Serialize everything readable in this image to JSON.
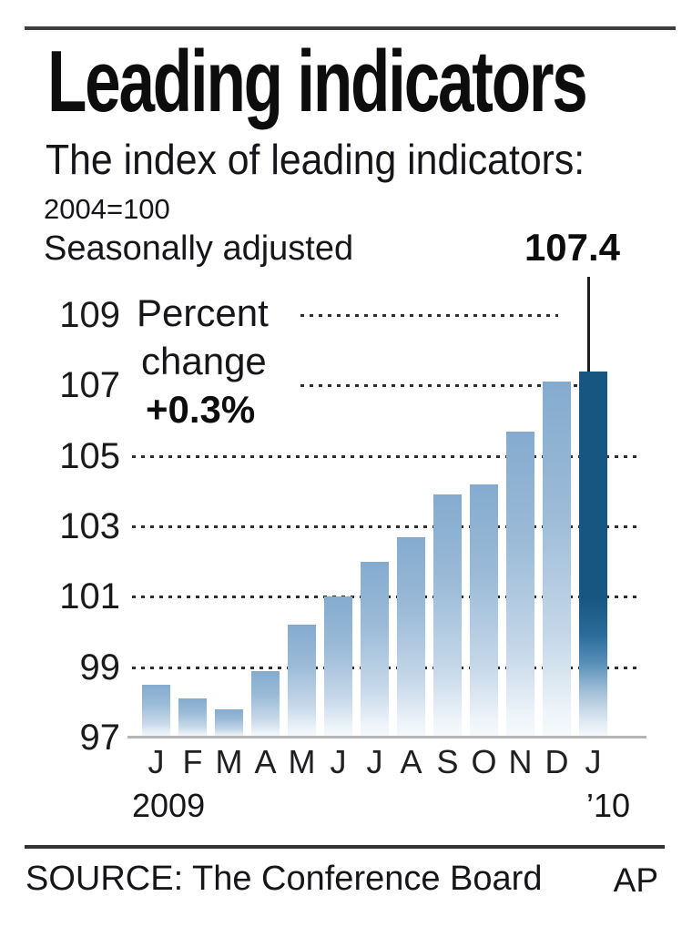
{
  "header": {
    "title": "Leading indicators",
    "subtitle": "The index of leading indicators:",
    "scale_note": "2004=100",
    "adjustment_note": "Seasonally adjusted"
  },
  "annotation": {
    "line1": "Percent",
    "line2": "change",
    "value": "+0.3%",
    "peak_label": "107.4"
  },
  "x_axis": {
    "year_left": "2009",
    "year_right": "’10"
  },
  "footer": {
    "source": "SOURCE: The Conference Board",
    "credit": "AP"
  },
  "chart_data": {
    "type": "bar",
    "title": "Leading indicators",
    "subtitle": "The index of leading indicators: 2004=100, seasonally adjusted",
    "categories": [
      "J",
      "F",
      "M",
      "A",
      "M",
      "J",
      "J",
      "A",
      "S",
      "O",
      "N",
      "D",
      "J"
    ],
    "values": [
      98.5,
      98.1,
      97.8,
      98.9,
      100.2,
      101.0,
      102.0,
      102.7,
      103.9,
      104.2,
      105.7,
      107.1,
      107.4
    ],
    "highlight_index": 12,
    "highlight_value_label": "107.4",
    "percent_change_label": "+0.3%",
    "xlabel": "",
    "ylabel": "Index (2004=100)",
    "ylim": [
      97,
      109.5
    ],
    "yticks": [
      97,
      99,
      101,
      103,
      105,
      107,
      109
    ],
    "grid": "dotted horizontal",
    "legend": "none",
    "year_groups": [
      "2009",
      "'10"
    ],
    "colors": {
      "bar_light_top": "#84abce",
      "bar_dark": "#175681",
      "grid_dot": "#2f2f2f",
      "baseline": "#b5b5b5"
    }
  }
}
